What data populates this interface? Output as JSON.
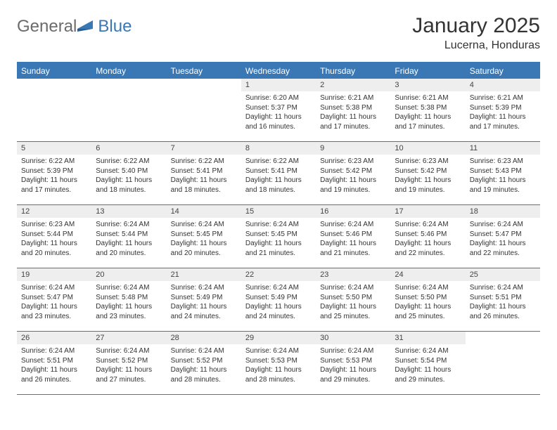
{
  "logo": {
    "text1": "General",
    "text2": "Blue"
  },
  "title": "January 2025",
  "location": "Lucerna, Honduras",
  "colors": {
    "accent": "#3a78b5",
    "header_text": "#ffffff",
    "body_text": "#333333",
    "daynum_bg": "#eeeeee",
    "background": "#ffffff",
    "logo_gray": "#6b6b6b"
  },
  "day_names": [
    "Sunday",
    "Monday",
    "Tuesday",
    "Wednesday",
    "Thursday",
    "Friday",
    "Saturday"
  ],
  "weeks": [
    [
      null,
      null,
      null,
      {
        "n": "1",
        "sunrise": "6:20 AM",
        "sunset": "5:37 PM",
        "daylight": "11 hours and 16 minutes."
      },
      {
        "n": "2",
        "sunrise": "6:21 AM",
        "sunset": "5:38 PM",
        "daylight": "11 hours and 17 minutes."
      },
      {
        "n": "3",
        "sunrise": "6:21 AM",
        "sunset": "5:38 PM",
        "daylight": "11 hours and 17 minutes."
      },
      {
        "n": "4",
        "sunrise": "6:21 AM",
        "sunset": "5:39 PM",
        "daylight": "11 hours and 17 minutes."
      }
    ],
    [
      {
        "n": "5",
        "sunrise": "6:22 AM",
        "sunset": "5:39 PM",
        "daylight": "11 hours and 17 minutes."
      },
      {
        "n": "6",
        "sunrise": "6:22 AM",
        "sunset": "5:40 PM",
        "daylight": "11 hours and 18 minutes."
      },
      {
        "n": "7",
        "sunrise": "6:22 AM",
        "sunset": "5:41 PM",
        "daylight": "11 hours and 18 minutes."
      },
      {
        "n": "8",
        "sunrise": "6:22 AM",
        "sunset": "5:41 PM",
        "daylight": "11 hours and 18 minutes."
      },
      {
        "n": "9",
        "sunrise": "6:23 AM",
        "sunset": "5:42 PM",
        "daylight": "11 hours and 19 minutes."
      },
      {
        "n": "10",
        "sunrise": "6:23 AM",
        "sunset": "5:42 PM",
        "daylight": "11 hours and 19 minutes."
      },
      {
        "n": "11",
        "sunrise": "6:23 AM",
        "sunset": "5:43 PM",
        "daylight": "11 hours and 19 minutes."
      }
    ],
    [
      {
        "n": "12",
        "sunrise": "6:23 AM",
        "sunset": "5:44 PM",
        "daylight": "11 hours and 20 minutes."
      },
      {
        "n": "13",
        "sunrise": "6:24 AM",
        "sunset": "5:44 PM",
        "daylight": "11 hours and 20 minutes."
      },
      {
        "n": "14",
        "sunrise": "6:24 AM",
        "sunset": "5:45 PM",
        "daylight": "11 hours and 20 minutes."
      },
      {
        "n": "15",
        "sunrise": "6:24 AM",
        "sunset": "5:45 PM",
        "daylight": "11 hours and 21 minutes."
      },
      {
        "n": "16",
        "sunrise": "6:24 AM",
        "sunset": "5:46 PM",
        "daylight": "11 hours and 21 minutes."
      },
      {
        "n": "17",
        "sunrise": "6:24 AM",
        "sunset": "5:46 PM",
        "daylight": "11 hours and 22 minutes."
      },
      {
        "n": "18",
        "sunrise": "6:24 AM",
        "sunset": "5:47 PM",
        "daylight": "11 hours and 22 minutes."
      }
    ],
    [
      {
        "n": "19",
        "sunrise": "6:24 AM",
        "sunset": "5:47 PM",
        "daylight": "11 hours and 23 minutes."
      },
      {
        "n": "20",
        "sunrise": "6:24 AM",
        "sunset": "5:48 PM",
        "daylight": "11 hours and 23 minutes."
      },
      {
        "n": "21",
        "sunrise": "6:24 AM",
        "sunset": "5:49 PM",
        "daylight": "11 hours and 24 minutes."
      },
      {
        "n": "22",
        "sunrise": "6:24 AM",
        "sunset": "5:49 PM",
        "daylight": "11 hours and 24 minutes."
      },
      {
        "n": "23",
        "sunrise": "6:24 AM",
        "sunset": "5:50 PM",
        "daylight": "11 hours and 25 minutes."
      },
      {
        "n": "24",
        "sunrise": "6:24 AM",
        "sunset": "5:50 PM",
        "daylight": "11 hours and 25 minutes."
      },
      {
        "n": "25",
        "sunrise": "6:24 AM",
        "sunset": "5:51 PM",
        "daylight": "11 hours and 26 minutes."
      }
    ],
    [
      {
        "n": "26",
        "sunrise": "6:24 AM",
        "sunset": "5:51 PM",
        "daylight": "11 hours and 26 minutes."
      },
      {
        "n": "27",
        "sunrise": "6:24 AM",
        "sunset": "5:52 PM",
        "daylight": "11 hours and 27 minutes."
      },
      {
        "n": "28",
        "sunrise": "6:24 AM",
        "sunset": "5:52 PM",
        "daylight": "11 hours and 28 minutes."
      },
      {
        "n": "29",
        "sunrise": "6:24 AM",
        "sunset": "5:53 PM",
        "daylight": "11 hours and 28 minutes."
      },
      {
        "n": "30",
        "sunrise": "6:24 AM",
        "sunset": "5:53 PM",
        "daylight": "11 hours and 29 minutes."
      },
      {
        "n": "31",
        "sunrise": "6:24 AM",
        "sunset": "5:54 PM",
        "daylight": "11 hours and 29 minutes."
      },
      null
    ]
  ],
  "labels": {
    "sunrise": "Sunrise:",
    "sunset": "Sunset:",
    "daylight": "Daylight:"
  }
}
